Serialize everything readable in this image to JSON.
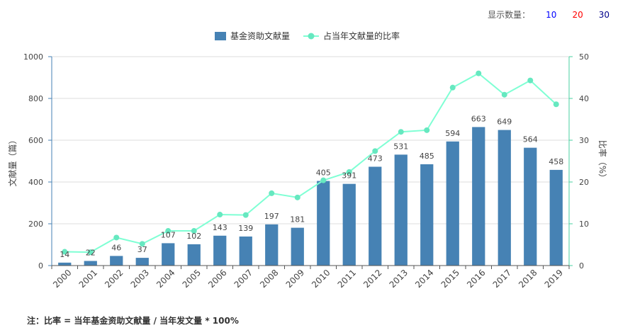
{
  "display_count": {
    "label": "显示数量：",
    "options": [
      {
        "label": "10",
        "color": "#0000ff"
      },
      {
        "label": "20",
        "color": "#ff0000"
      },
      {
        "label": "30",
        "color": "#00008b"
      }
    ]
  },
  "footnote": "注：比率 = 当年基金资助文献量 / 当年发文量 * 100%",
  "colors": {
    "bar": "#4682b4",
    "line": "#7fffd4",
    "line_dark": "#66e8c0",
    "axis_left": "#4682b4",
    "axis_right": "#48d1a0",
    "grid": "#dcdcdc"
  },
  "chart_data": {
    "type": "bar+line",
    "categories": [
      "2000",
      "2001",
      "2002",
      "2003",
      "2004",
      "2005",
      "2006",
      "2007",
      "2008",
      "2009",
      "2010",
      "2011",
      "2012",
      "2013",
      "2014",
      "2015",
      "2016",
      "2017",
      "2018",
      "2019"
    ],
    "series": [
      {
        "name": "基金资助文献量",
        "type": "bar",
        "axis": "left",
        "values": [
          14,
          22,
          46,
          37,
          107,
          102,
          143,
          139,
          197,
          181,
          405,
          391,
          473,
          531,
          485,
          594,
          663,
          649,
          564,
          458
        ]
      },
      {
        "name": "占当年文献量的比率",
        "type": "line",
        "axis": "right",
        "values": [
          3.3,
          3.2,
          6.7,
          5.2,
          8.3,
          8.3,
          12.2,
          12.1,
          17.3,
          16.3,
          20.4,
          22.4,
          27.4,
          32.0,
          32.4,
          42.6,
          46.0,
          40.9,
          44.3,
          38.6
        ]
      }
    ],
    "ylabel_left": "文献量（篇）",
    "ylabel_right": "比率（%）",
    "ylim_left": [
      0,
      1000
    ],
    "yticks_left": [
      "0",
      "200",
      "400",
      "600",
      "800",
      "1000"
    ],
    "ylim_right": [
      0,
      50
    ],
    "yticks_right": [
      "0",
      "10",
      "20",
      "30",
      "40",
      "50"
    ],
    "legend_position": "top-center",
    "grid": true
  }
}
